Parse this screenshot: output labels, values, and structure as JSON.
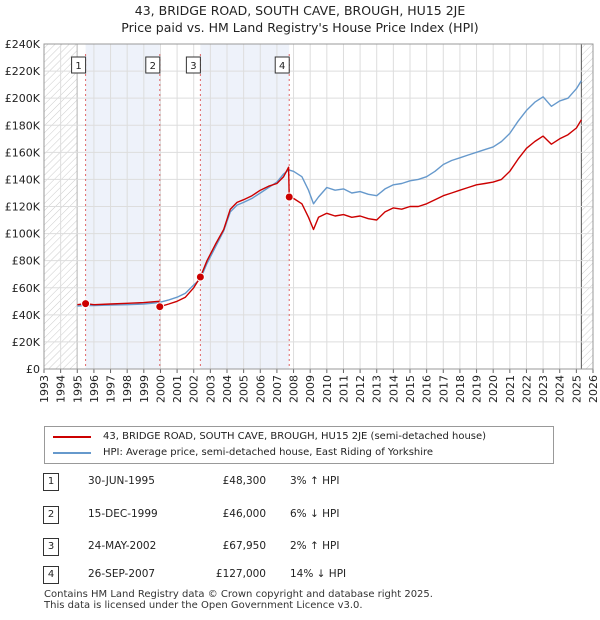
{
  "title": {
    "line1": "43, BRIDGE ROAD, SOUTH CAVE, BROUGH, HU15 2JE",
    "line2": "Price paid vs. HM Land Registry's House Price Index (HPI)"
  },
  "colors": {
    "property": "#cc0000",
    "hpi": "#6699cc",
    "marker": "#cc0000",
    "hatch": "#cccccc",
    "span": "#eef2fa"
  },
  "chart_data": {
    "type": "line",
    "xlim": [
      1993,
      2026
    ],
    "ylim": [
      0,
      240000
    ],
    "yticks": [
      0,
      20000,
      40000,
      60000,
      80000,
      100000,
      120000,
      140000,
      160000,
      180000,
      200000,
      220000,
      240000
    ],
    "ytick_labels": [
      "£0",
      "£20K",
      "£40K",
      "£60K",
      "£80K",
      "£100K",
      "£120K",
      "£140K",
      "£160K",
      "£180K",
      "£200K",
      "£220K",
      "£240K"
    ],
    "xtick_labels": [
      "1993",
      "1994",
      "1995",
      "1996",
      "1997",
      "1998",
      "1999",
      "2000",
      "2001",
      "2002",
      "2003",
      "2004",
      "2005",
      "2006",
      "2007",
      "2008",
      "2009",
      "2010",
      "2011",
      "2012",
      "2013",
      "2014",
      "2015",
      "2016",
      "2017",
      "2018",
      "2019",
      "2020",
      "2021",
      "2022",
      "2023",
      "2024",
      "2025",
      "2026"
    ],
    "grid": true,
    "data_start": 1995.0,
    "data_end": 2025.3,
    "series": [
      {
        "name": "43, BRIDGE ROAD, SOUTH CAVE, BROUGH, HU15 2JE (semi-detached house)",
        "color": "#cc0000",
        "x": [
          1995.0,
          1995.5,
          1996.0,
          1997.0,
          1998.0,
          1999.0,
          1999.9,
          1999.96,
          2000.5,
          2001.0,
          2001.5,
          2002.0,
          2002.4,
          2002.8,
          2003.3,
          2003.8,
          2004.2,
          2004.6,
          2005.0,
          2005.5,
          2006.0,
          2006.5,
          2007.0,
          2007.4,
          2007.7,
          2007.74,
          2008.0,
          2008.5,
          2008.9,
          2009.2,
          2009.5,
          2010.0,
          2010.5,
          2011.0,
          2011.5,
          2012.0,
          2012.5,
          2013.0,
          2013.5,
          2014.0,
          2014.5,
          2015.0,
          2015.5,
          2016.0,
          2016.5,
          2017.0,
          2017.5,
          2018.0,
          2018.5,
          2019.0,
          2019.5,
          2020.0,
          2020.5,
          2021.0,
          2021.5,
          2022.0,
          2022.5,
          2023.0,
          2023.5,
          2024.0,
          2024.5,
          2025.0,
          2025.3
        ],
        "y": [
          47500,
          48300,
          47500,
          48000,
          48500,
          49000,
          50000,
          46000,
          48000,
          50000,
          53000,
          60000,
          67950,
          80000,
          92000,
          103000,
          118000,
          123000,
          125000,
          128000,
          132000,
          135000,
          137000,
          142000,
          149000,
          127000,
          126000,
          122000,
          112000,
          103000,
          112000,
          115000,
          113000,
          114000,
          112000,
          113000,
          111000,
          110000,
          116000,
          119000,
          118000,
          120000,
          120000,
          122000,
          125000,
          128000,
          130000,
          132000,
          134000,
          136000,
          137000,
          138000,
          140000,
          146000,
          155000,
          163000,
          168000,
          172000,
          166000,
          170000,
          173000,
          178000,
          184000
        ]
      },
      {
        "name": "HPI: Average price, semi-detached house, East Riding of Yorkshire",
        "color": "#6699cc",
        "x": [
          1995.0,
          1995.5,
          1996.0,
          1997.0,
          1998.0,
          1999.0,
          1999.9,
          2000.5,
          2001.0,
          2001.5,
          2002.0,
          2002.4,
          2002.8,
          2003.3,
          2003.8,
          2004.2,
          2004.6,
          2005.0,
          2005.5,
          2006.0,
          2006.5,
          2007.0,
          2007.4,
          2007.7,
          2008.0,
          2008.5,
          2008.9,
          2009.2,
          2009.5,
          2010.0,
          2010.5,
          2011.0,
          2011.5,
          2012.0,
          2012.5,
          2013.0,
          2013.5,
          2014.0,
          2014.5,
          2015.0,
          2015.5,
          2016.0,
          2016.5,
          2017.0,
          2017.5,
          2018.0,
          2018.5,
          2019.0,
          2019.5,
          2020.0,
          2020.5,
          2021.0,
          2021.5,
          2022.0,
          2022.5,
          2023.0,
          2023.5,
          2024.0,
          2024.5,
          2025.0,
          2025.3
        ],
        "y": [
          46500,
          47000,
          46800,
          47200,
          47500,
          48000,
          49000,
          51000,
          53000,
          56000,
          62000,
          66500,
          78000,
          90000,
          102000,
          116000,
          121000,
          123000,
          126000,
          130000,
          134000,
          138000,
          144000,
          147000,
          146000,
          142000,
          132000,
          122000,
          127000,
          134000,
          132000,
          133000,
          130000,
          131000,
          129000,
          128000,
          133000,
          136000,
          137000,
          139000,
          140000,
          142000,
          146000,
          151000,
          154000,
          156000,
          158000,
          160000,
          162000,
          164000,
          168000,
          174000,
          183000,
          191000,
          197000,
          201000,
          194000,
          198000,
          200000,
          207000,
          213000
        ]
      }
    ],
    "sales": [
      {
        "label": "1",
        "x": 1995.5,
        "y": 48300
      },
      {
        "label": "2",
        "x": 1999.96,
        "y": 46000
      },
      {
        "label": "3",
        "x": 2002.4,
        "y": 67950
      },
      {
        "label": "4",
        "x": 2007.74,
        "y": 127000
      }
    ]
  },
  "legend": {
    "property_label": "43, BRIDGE ROAD, SOUTH CAVE, BROUGH, HU15 2JE (semi-detached house)",
    "hpi_label": "HPI: Average price, semi-detached house, East Riding of Yorkshire"
  },
  "sales_table": [
    {
      "num": "1",
      "date": "30-JUN-1995",
      "price": "£48,300",
      "hpi": "3% ↑ HPI"
    },
    {
      "num": "2",
      "date": "15-DEC-1999",
      "price": "£46,000",
      "hpi": "6% ↓ HPI"
    },
    {
      "num": "3",
      "date": "24-MAY-2002",
      "price": "£67,950",
      "hpi": "2% ↑ HPI"
    },
    {
      "num": "4",
      "date": "26-SEP-2007",
      "price": "£127,000",
      "hpi": "14% ↓ HPI"
    }
  ],
  "footer": {
    "line1": "Contains HM Land Registry data © Crown copyright and database right 2025.",
    "line2": "This data is licensed under the Open Government Licence v3.0."
  }
}
